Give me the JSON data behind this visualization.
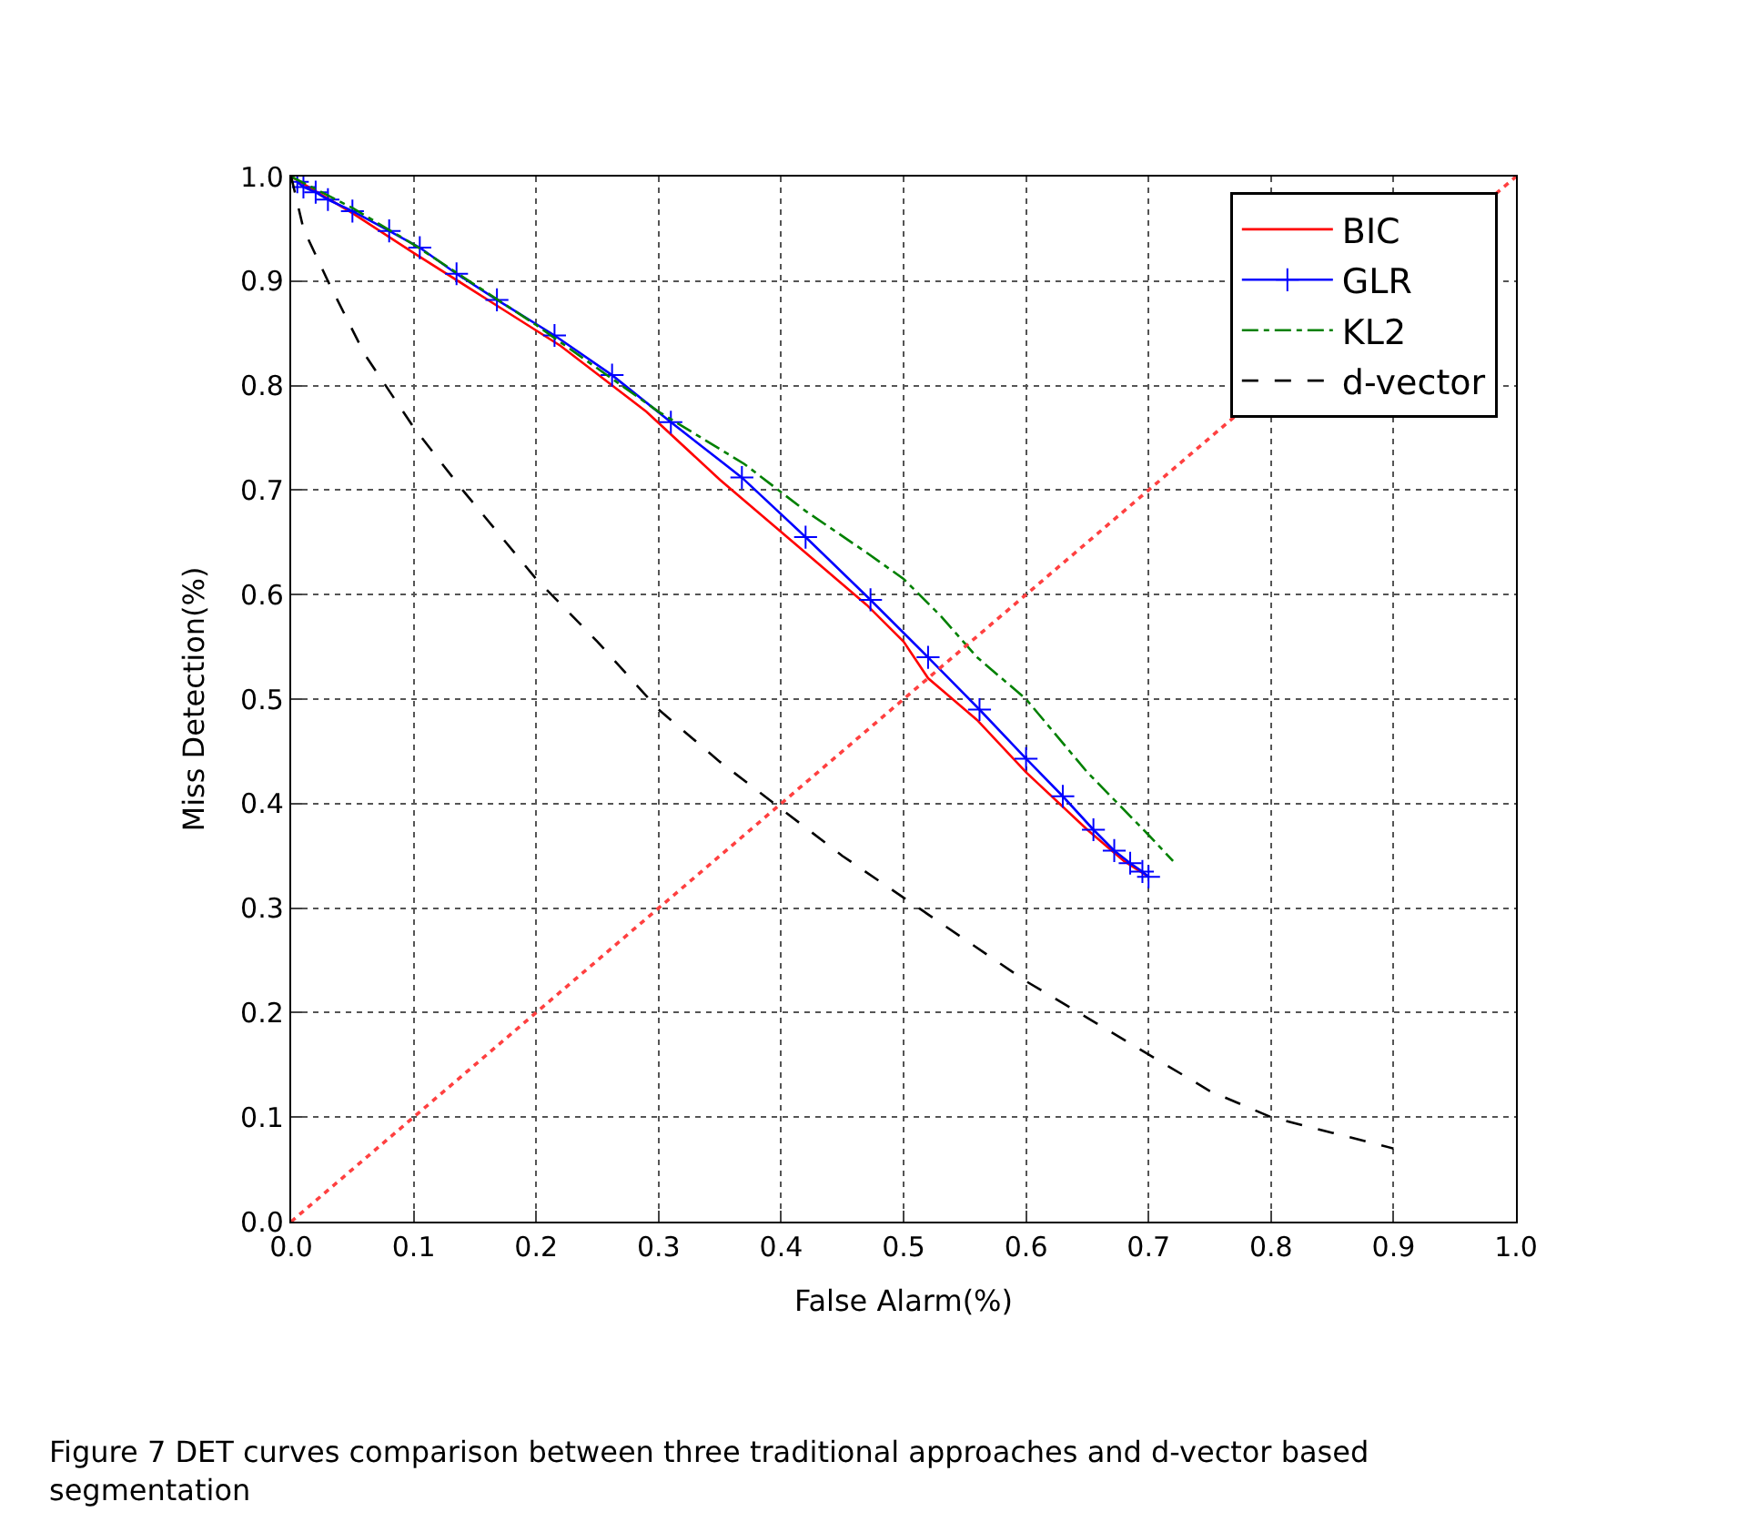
{
  "chart_data": {
    "type": "line",
    "xlabel": "False Alarm(%)",
    "ylabel": "Miss Detection(%)",
    "xlim": [
      0,
      1
    ],
    "ylim": [
      0,
      1
    ],
    "xticks": [
      {
        "value": 0,
        "label": "0.0"
      },
      {
        "value": 0.1,
        "label": "0.1"
      },
      {
        "value": 0.2,
        "label": "0.2"
      },
      {
        "value": 0.3,
        "label": "0.3"
      },
      {
        "value": 0.4,
        "label": "0.4"
      },
      {
        "value": 0.5,
        "label": "0.5"
      },
      {
        "value": 0.6,
        "label": "0.6"
      },
      {
        "value": 0.7,
        "label": "0.7"
      },
      {
        "value": 0.8,
        "label": "0.8"
      },
      {
        "value": 0.9,
        "label": "0.9"
      },
      {
        "value": 1,
        "label": "1.0"
      }
    ],
    "yticks": [
      {
        "value": 0,
        "label": "0.0"
      },
      {
        "value": 0.1,
        "label": "0.1"
      },
      {
        "value": 0.2,
        "label": "0.2"
      },
      {
        "value": 0.3,
        "label": "0.3"
      },
      {
        "value": 0.4,
        "label": "0.4"
      },
      {
        "value": 0.5,
        "label": "0.5"
      },
      {
        "value": 0.6,
        "label": "0.6"
      },
      {
        "value": 0.7,
        "label": "0.7"
      },
      {
        "value": 0.8,
        "label": "0.8"
      },
      {
        "value": 0.9,
        "label": "0.9"
      },
      {
        "value": 1,
        "label": "1.0"
      }
    ],
    "grid": true,
    "legend": "top right",
    "series": [
      {
        "name": "BIC",
        "color": "#ff0000",
        "line_style": "solid",
        "marker": "none",
        "x": [
          0,
          0.05,
          0.1,
          0.17,
          0.22,
          0.29,
          0.35,
          0.42,
          0.47,
          0.5,
          0.52,
          0.56,
          0.6,
          0.65,
          0.68,
          0.7
        ],
        "values": [
          1,
          0.965,
          0.927,
          0.875,
          0.838,
          0.775,
          0.71,
          0.64,
          0.59,
          0.555,
          0.52,
          0.48,
          0.43,
          0.375,
          0.345,
          0.33
        ]
      },
      {
        "name": "GLR",
        "color": "#0000ff",
        "line_style": "solid",
        "marker": "cross",
        "x": [
          0.005,
          0.01,
          0.02,
          0.03,
          0.05,
          0.08,
          0.105,
          0.135,
          0.168,
          0.215,
          0.262,
          0.31,
          0.368,
          0.42,
          0.473,
          0.52,
          0.562,
          0.6,
          0.63,
          0.655,
          0.672,
          0.685,
          0.695,
          0.7
        ],
        "values": [
          0.995,
          0.99,
          0.985,
          0.978,
          0.967,
          0.948,
          0.932,
          0.907,
          0.882,
          0.848,
          0.81,
          0.765,
          0.712,
          0.655,
          0.595,
          0.54,
          0.49,
          0.443,
          0.407,
          0.375,
          0.355,
          0.343,
          0.335,
          0.33
        ]
      },
      {
        "name": "KL2",
        "color": "#008000",
        "line_style": "dashdot",
        "marker": "none",
        "x": [
          0,
          0.05,
          0.1,
          0.2,
          0.3,
          0.37,
          0.42,
          0.47,
          0.5,
          0.53,
          0.56,
          0.6,
          0.65,
          0.7,
          0.72
        ],
        "values": [
          1,
          0.97,
          0.935,
          0.858,
          0.775,
          0.725,
          0.68,
          0.64,
          0.615,
          0.58,
          0.54,
          0.5,
          0.43,
          0.37,
          0.345
        ]
      },
      {
        "name": "d-vector",
        "color": "#000000",
        "line_style": "dashed",
        "marker": "none",
        "x": [
          0,
          0.01,
          0.03,
          0.06,
          0.1,
          0.14,
          0.2,
          0.25,
          0.3,
          0.35,
          0.4,
          0.45,
          0.5,
          0.55,
          0.6,
          0.65,
          0.7,
          0.75,
          0.8,
          0.85,
          0.9
        ],
        "values": [
          1,
          0.95,
          0.9,
          0.83,
          0.76,
          0.7,
          0.615,
          0.555,
          0.49,
          0.44,
          0.395,
          0.35,
          0.31,
          0.27,
          0.23,
          0.195,
          0.16,
          0.125,
          0.1,
          0.085,
          0.07
        ]
      },
      {
        "color": "#ff4040",
        "line_style": "dotted",
        "marker": "none",
        "x": [
          0,
          1
        ],
        "values": [
          0,
          1
        ]
      }
    ],
    "annotations": [
      "Figure 7 DET curves comparison between three traditional approaches and d-vector based segmentation"
    ]
  }
}
